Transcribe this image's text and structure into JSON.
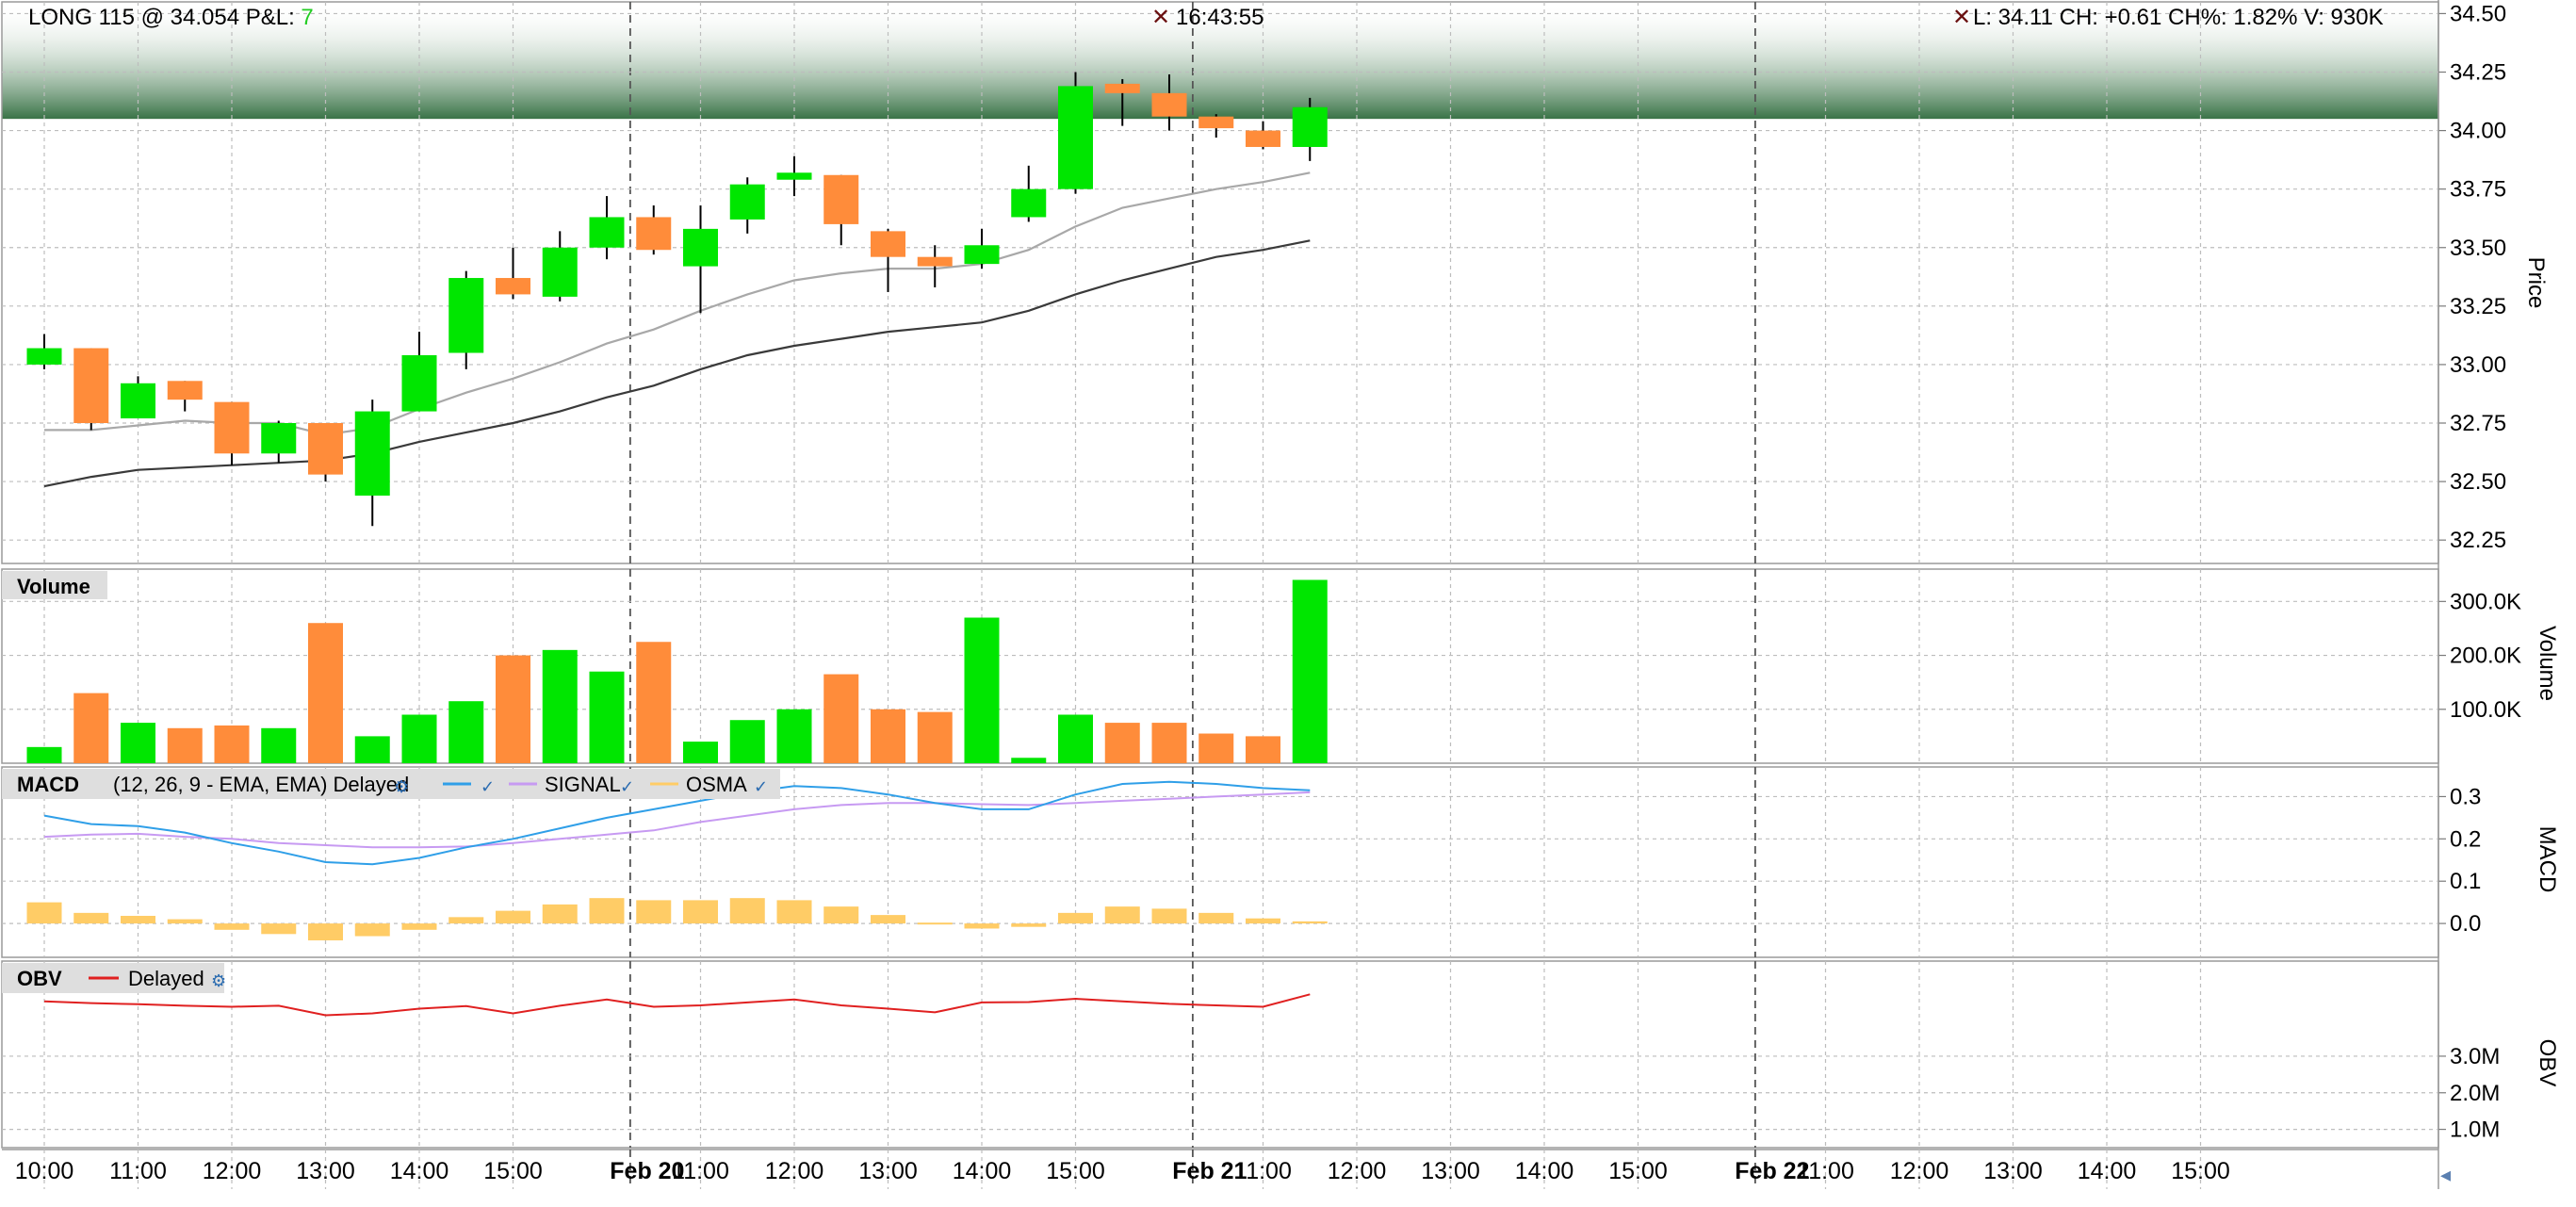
{
  "header": {
    "position_text": "LONG 115 @ 34.054 P&L: ",
    "pnl_value": "7",
    "time": "16:43:55",
    "quote": "L: 34.11 CH: +0.61 CH%: 1.82% V: 930K"
  },
  "colors": {
    "up": "#00e600",
    "down": "#ff8c3a",
    "pnl": "#22cc22",
    "ma_fast": "#a8a8a8",
    "ma_slow": "#3a3a3a",
    "macd": "#2f9fe8",
    "signal": "#c79af2",
    "osma": "#ffcc66",
    "obv": "#e02020",
    "position_band": "#2e6b3c"
  },
  "panes": {
    "price": {
      "label": "Price"
    },
    "volume": {
      "label": "Volume",
      "title": "Volume"
    },
    "macd": {
      "label": "MACD",
      "title": "MACD",
      "params": "(12, 26, 9 - EMA, EMA) Delayed",
      "legend": [
        "SIGNAL",
        "OSMA"
      ]
    },
    "obv": {
      "label": "OBV",
      "title": "OBV",
      "legend": [
        "Delayed"
      ]
    }
  },
  "chart_data": {
    "type": "candlestick",
    "x_labels": [
      "10:00",
      "11:00",
      "12:00",
      "13:00",
      "14:00",
      "15:00",
      "Feb 20",
      "11:00",
      "12:00",
      "13:00",
      "14:00",
      "15:00",
      "Feb 21",
      "11:00",
      "12:00",
      "13:00",
      "14:00",
      "15:00",
      "Feb 22",
      "11:00",
      "12:00",
      "13:00",
      "14:00",
      "15:00"
    ],
    "day_breaks": [
      6.5,
      13.5,
      20.5
    ],
    "price": {
      "ylim": [
        32.15,
        34.55
      ],
      "ticks": [
        32.25,
        32.5,
        32.75,
        33.0,
        33.25,
        33.5,
        33.75,
        34.0,
        34.25,
        34.5
      ],
      "tick_labels": [
        "32.25",
        "32.50",
        "32.75",
        "33.00",
        "33.25",
        "33.50",
        "33.75",
        "34.00",
        "34.25",
        "34.50"
      ],
      "position_band": [
        34.05,
        34.55
      ],
      "candles": [
        {
          "o": 33.0,
          "h": 33.13,
          "l": 32.98,
          "c": 33.07
        },
        {
          "o": 33.07,
          "h": 33.07,
          "l": 32.72,
          "c": 32.75
        },
        {
          "o": 32.77,
          "h": 32.95,
          "l": 32.77,
          "c": 32.92
        },
        {
          "o": 32.93,
          "h": 32.93,
          "l": 32.8,
          "c": 32.85
        },
        {
          "o": 32.84,
          "h": 32.84,
          "l": 32.57,
          "c": 32.62
        },
        {
          "o": 32.62,
          "h": 32.76,
          "l": 32.58,
          "c": 32.75
        },
        {
          "o": 32.75,
          "h": 32.75,
          "l": 32.5,
          "c": 32.53
        },
        {
          "o": 32.44,
          "h": 32.85,
          "l": 32.31,
          "c": 32.8
        },
        {
          "o": 32.8,
          "h": 33.14,
          "l": 32.8,
          "c": 33.04
        },
        {
          "o": 33.05,
          "h": 33.4,
          "l": 32.98,
          "c": 33.37
        },
        {
          "o": 33.37,
          "h": 33.5,
          "l": 33.28,
          "c": 33.3
        },
        {
          "o": 33.29,
          "h": 33.57,
          "l": 33.27,
          "c": 33.5
        },
        {
          "o": 33.5,
          "h": 33.72,
          "l": 33.45,
          "c": 33.63
        },
        {
          "o": 33.63,
          "h": 33.68,
          "l": 33.47,
          "c": 33.49
        },
        {
          "o": 33.42,
          "h": 33.68,
          "l": 33.22,
          "c": 33.58
        },
        {
          "o": 33.62,
          "h": 33.8,
          "l": 33.56,
          "c": 33.77
        },
        {
          "o": 33.79,
          "h": 33.89,
          "l": 33.72,
          "c": 33.82
        },
        {
          "o": 33.81,
          "h": 33.81,
          "l": 33.51,
          "c": 33.6
        },
        {
          "o": 33.57,
          "h": 33.58,
          "l": 33.31,
          "c": 33.46
        },
        {
          "o": 33.46,
          "h": 33.51,
          "l": 33.33,
          "c": 33.42
        },
        {
          "o": 33.43,
          "h": 33.58,
          "l": 33.41,
          "c": 33.51
        },
        {
          "o": 33.63,
          "h": 33.85,
          "l": 33.61,
          "c": 33.75
        },
        {
          "o": 33.75,
          "h": 34.25,
          "l": 33.73,
          "c": 34.19
        },
        {
          "o": 34.2,
          "h": 34.22,
          "l": 34.02,
          "c": 34.16
        },
        {
          "o": 34.16,
          "h": 34.24,
          "l": 34.0,
          "c": 34.06
        },
        {
          "o": 34.06,
          "h": 34.07,
          "l": 33.97,
          "c": 34.01
        },
        {
          "o": 34.0,
          "h": 34.04,
          "l": 33.92,
          "c": 33.93
        },
        {
          "o": 33.93,
          "h": 34.14,
          "l": 33.87,
          "c": 34.1
        }
      ],
      "ma_fast": [
        32.72,
        32.72,
        32.74,
        32.76,
        32.75,
        32.75,
        32.7,
        32.73,
        32.81,
        32.88,
        32.94,
        33.01,
        33.09,
        33.15,
        33.23,
        33.3,
        33.36,
        33.39,
        33.41,
        33.41,
        33.43,
        33.49,
        33.59,
        33.67,
        33.71,
        33.75,
        33.78,
        33.82
      ],
      "ma_slow": [
        32.48,
        32.52,
        32.55,
        32.56,
        32.57,
        32.58,
        32.59,
        32.62,
        32.67,
        32.71,
        32.75,
        32.8,
        32.86,
        32.91,
        32.98,
        33.04,
        33.08,
        33.11,
        33.14,
        33.16,
        33.18,
        33.23,
        33.3,
        33.36,
        33.41,
        33.46,
        33.49,
        33.53
      ]
    },
    "volume": {
      "ylim": [
        0,
        360000
      ],
      "ticks": [
        100000,
        200000,
        300000
      ],
      "tick_labels": [
        "100.0K",
        "200.0K",
        "300.0K"
      ],
      "values": [
        30000,
        130000,
        75000,
        65000,
        70000,
        65000,
        260000,
        50000,
        90000,
        115000,
        200000,
        210000,
        170000,
        225000,
        40000,
        80000,
        100000,
        165000,
        100000,
        95000,
        270000,
        10000,
        90000,
        75000,
        75000,
        55000,
        50000,
        340000
      ]
    },
    "macd": {
      "ylim": [
        -0.08,
        0.37
      ],
      "ticks": [
        0.0,
        0.1,
        0.2,
        0.3
      ],
      "tick_labels": [
        "0.0",
        "0.1",
        "0.2",
        "0.3"
      ],
      "macd": [
        0.255,
        0.235,
        0.23,
        0.215,
        0.19,
        0.17,
        0.145,
        0.14,
        0.155,
        0.18,
        0.2,
        0.225,
        0.25,
        0.27,
        0.29,
        0.31,
        0.325,
        0.32,
        0.305,
        0.285,
        0.27,
        0.27,
        0.305,
        0.33,
        0.335,
        0.33,
        0.32,
        0.315
      ],
      "signal": [
        0.205,
        0.21,
        0.212,
        0.205,
        0.2,
        0.19,
        0.185,
        0.18,
        0.18,
        0.182,
        0.19,
        0.2,
        0.21,
        0.22,
        0.24,
        0.255,
        0.27,
        0.28,
        0.285,
        0.285,
        0.282,
        0.28,
        0.285,
        0.29,
        0.295,
        0.3,
        0.305,
        0.31
      ],
      "osma": [
        0.05,
        0.025,
        0.018,
        0.01,
        -0.015,
        -0.025,
        -0.04,
        -0.03,
        -0.015,
        0.015,
        0.03,
        0.045,
        0.06,
        0.055,
        0.055,
        0.06,
        0.055,
        0.04,
        0.02,
        0.002,
        -0.012,
        -0.008,
        0.025,
        0.04,
        0.035,
        0.025,
        0.012,
        0.005
      ]
    },
    "obv": {
      "ylim": [
        500000,
        5600000
      ],
      "ticks": [
        1000000,
        2000000,
        3000000
      ],
      "tick_labels": [
        "1.0M",
        "2.0M",
        "3.0M"
      ],
      "values": [
        4500000,
        4450000,
        4420000,
        4380000,
        4350000,
        4380000,
        4120000,
        4170000,
        4300000,
        4370000,
        4170000,
        4380000,
        4550000,
        4350000,
        4390000,
        4470000,
        4550000,
        4390000,
        4300000,
        4200000,
        4470000,
        4480000,
        4570000,
        4500000,
        4430000,
        4390000,
        4350000,
        4690000
      ]
    }
  }
}
